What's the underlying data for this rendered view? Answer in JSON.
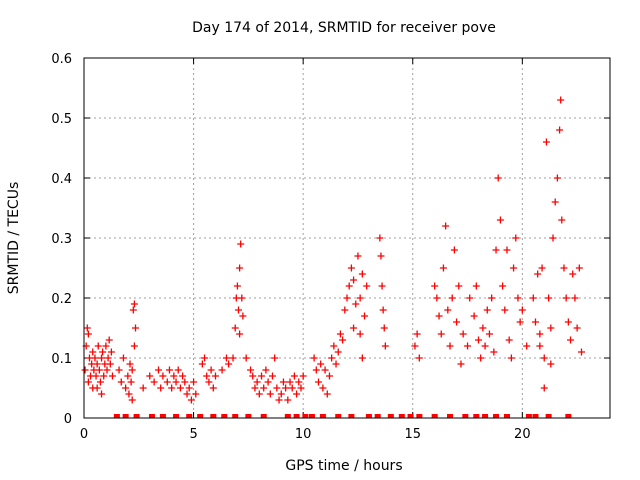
{
  "chart_data": {
    "type": "scatter",
    "title": "Day 174 of 2014, SRMTID for receiver pove",
    "xlabel": "GPS time / hours",
    "ylabel": "SRMTID / TECUs",
    "xlim": [
      0,
      24
    ],
    "ylim": [
      0,
      0.6
    ],
    "xticks": [
      0,
      5,
      10,
      15,
      20
    ],
    "xtick_labels": [
      "0",
      "5",
      "10",
      "15",
      "20"
    ],
    "yticks": [
      0,
      0.1,
      0.2,
      0.3,
      0.4,
      0.5,
      0.6
    ],
    "ytick_labels": [
      "0",
      "0.1",
      "0.2",
      "0.3",
      "0.4",
      "0.5",
      "0.6"
    ],
    "grid": true,
    "marker": "plus",
    "series": [
      {
        "name": "SRMTID",
        "color": "#ff0000",
        "points": [
          [
            0.05,
            0.08
          ],
          [
            0.1,
            0.12
          ],
          [
            0.15,
            0.15
          ],
          [
            0.2,
            0.06
          ],
          [
            0.25,
            0.1
          ],
          [
            0.3,
            0.07
          ],
          [
            0.35,
            0.09
          ],
          [
            0.4,
            0.05
          ],
          [
            0.45,
            0.08
          ],
          [
            0.5,
            0.1
          ],
          [
            0.55,
            0.07
          ],
          [
            0.6,
            0.09
          ],
          [
            0.65,
            0.12
          ],
          [
            0.7,
            0.08
          ],
          [
            0.75,
            0.06
          ],
          [
            0.8,
            0.1
          ],
          [
            0.85,
            0.11
          ],
          [
            0.9,
            0.07
          ],
          [
            0.95,
            0.09
          ],
          [
            1.0,
            0.12
          ],
          [
            1.05,
            0.08
          ],
          [
            1.1,
            0.1
          ],
          [
            1.15,
            0.13
          ],
          [
            1.2,
            0.09
          ],
          [
            1.25,
            0.11
          ],
          [
            1.3,
            0.07
          ],
          [
            0.2,
            0.14
          ],
          [
            0.4,
            0.11
          ],
          [
            0.6,
            0.05
          ],
          [
            0.8,
            0.04
          ],
          [
            1.6,
            0.08
          ],
          [
            1.7,
            0.06
          ],
          [
            1.8,
            0.1
          ],
          [
            1.9,
            0.05
          ],
          [
            2.0,
            0.07
          ],
          [
            2.05,
            0.04
          ],
          [
            2.1,
            0.09
          ],
          [
            2.15,
            0.06
          ],
          [
            2.2,
            0.03
          ],
          [
            2.25,
            0.18
          ],
          [
            2.3,
            0.19
          ],
          [
            2.35,
            0.15
          ],
          [
            2.3,
            0.12
          ],
          [
            2.2,
            0.08
          ],
          [
            2.7,
            0.05
          ],
          [
            3.0,
            0.07
          ],
          [
            3.2,
            0.06
          ],
          [
            3.4,
            0.08
          ],
          [
            3.5,
            0.05
          ],
          [
            3.6,
            0.07
          ],
          [
            3.8,
            0.06
          ],
          [
            3.9,
            0.08
          ],
          [
            4.0,
            0.05
          ],
          [
            4.1,
            0.07
          ],
          [
            4.2,
            0.06
          ],
          [
            4.3,
            0.08
          ],
          [
            4.4,
            0.05
          ],
          [
            4.5,
            0.07
          ],
          [
            4.6,
            0.06
          ],
          [
            4.7,
            0.04
          ],
          [
            4.8,
            0.05
          ],
          [
            4.9,
            0.03
          ],
          [
            5.0,
            0.06
          ],
          [
            5.1,
            0.04
          ],
          [
            5.4,
            0.09
          ],
          [
            5.5,
            0.1
          ],
          [
            5.6,
            0.07
          ],
          [
            5.7,
            0.06
          ],
          [
            5.8,
            0.08
          ],
          [
            5.9,
            0.05
          ],
          [
            6.0,
            0.07
          ],
          [
            6.3,
            0.08
          ],
          [
            6.5,
            0.1
          ],
          [
            6.6,
            0.09
          ],
          [
            6.8,
            0.1
          ],
          [
            6.9,
            0.15
          ],
          [
            6.95,
            0.2
          ],
          [
            7.0,
            0.22
          ],
          [
            7.05,
            0.18
          ],
          [
            7.1,
            0.25
          ],
          [
            7.15,
            0.29
          ],
          [
            7.2,
            0.2
          ],
          [
            7.1,
            0.14
          ],
          [
            7.25,
            0.17
          ],
          [
            7.4,
            0.1
          ],
          [
            7.6,
            0.08
          ],
          [
            7.7,
            0.07
          ],
          [
            7.8,
            0.05
          ],
          [
            7.9,
            0.06
          ],
          [
            8.0,
            0.04
          ],
          [
            8.1,
            0.07
          ],
          [
            8.2,
            0.05
          ],
          [
            8.3,
            0.08
          ],
          [
            8.4,
            0.06
          ],
          [
            8.5,
            0.04
          ],
          [
            8.6,
            0.07
          ],
          [
            8.7,
            0.1
          ],
          [
            8.8,
            0.05
          ],
          [
            8.9,
            0.03
          ],
          [
            9.0,
            0.04
          ],
          [
            9.1,
            0.06
          ],
          [
            9.2,
            0.05
          ],
          [
            9.3,
            0.03
          ],
          [
            9.4,
            0.06
          ],
          [
            9.5,
            0.05
          ],
          [
            9.6,
            0.07
          ],
          [
            9.7,
            0.04
          ],
          [
            9.8,
            0.06
          ],
          [
            9.9,
            0.05
          ],
          [
            10.0,
            0.07
          ],
          [
            10.5,
            0.1
          ],
          [
            10.6,
            0.08
          ],
          [
            10.7,
            0.06
          ],
          [
            10.8,
            0.09
          ],
          [
            10.9,
            0.05
          ],
          [
            11.0,
            0.08
          ],
          [
            11.1,
            0.04
          ],
          [
            11.2,
            0.07
          ],
          [
            11.3,
            0.1
          ],
          [
            11.4,
            0.12
          ],
          [
            11.5,
            0.09
          ],
          [
            11.6,
            0.11
          ],
          [
            11.7,
            0.14
          ],
          [
            11.8,
            0.13
          ],
          [
            11.9,
            0.18
          ],
          [
            12.0,
            0.2
          ],
          [
            12.1,
            0.22
          ],
          [
            12.2,
            0.25
          ],
          [
            12.3,
            0.23
          ],
          [
            12.4,
            0.19
          ],
          [
            12.5,
            0.27
          ],
          [
            12.6,
            0.2
          ],
          [
            12.7,
            0.24
          ],
          [
            12.8,
            0.17
          ],
          [
            12.9,
            0.22
          ],
          [
            12.6,
            0.14
          ],
          [
            12.7,
            0.1
          ],
          [
            12.3,
            0.15
          ],
          [
            13.5,
            0.3
          ],
          [
            13.55,
            0.27
          ],
          [
            13.6,
            0.22
          ],
          [
            13.65,
            0.18
          ],
          [
            13.7,
            0.15
          ],
          [
            13.75,
            0.12
          ],
          [
            15.1,
            0.12
          ],
          [
            15.2,
            0.14
          ],
          [
            15.3,
            0.1
          ],
          [
            16.0,
            0.22
          ],
          [
            16.1,
            0.2
          ],
          [
            16.2,
            0.17
          ],
          [
            16.3,
            0.14
          ],
          [
            16.4,
            0.25
          ],
          [
            16.5,
            0.32
          ],
          [
            16.6,
            0.18
          ],
          [
            16.7,
            0.12
          ],
          [
            16.8,
            0.2
          ],
          [
            16.9,
            0.28
          ],
          [
            17.0,
            0.16
          ],
          [
            17.1,
            0.22
          ],
          [
            17.2,
            0.09
          ],
          [
            17.3,
            0.14
          ],
          [
            17.5,
            0.12
          ],
          [
            17.6,
            0.2
          ],
          [
            17.8,
            0.17
          ],
          [
            17.9,
            0.22
          ],
          [
            18.0,
            0.13
          ],
          [
            18.1,
            0.1
          ],
          [
            18.2,
            0.15
          ],
          [
            18.3,
            0.12
          ],
          [
            18.4,
            0.18
          ],
          [
            18.5,
            0.14
          ],
          [
            18.6,
            0.2
          ],
          [
            18.7,
            0.11
          ],
          [
            18.8,
            0.28
          ],
          [
            18.9,
            0.4
          ],
          [
            19.0,
            0.33
          ],
          [
            19.1,
            0.22
          ],
          [
            19.2,
            0.18
          ],
          [
            19.3,
            0.28
          ],
          [
            19.4,
            0.13
          ],
          [
            19.5,
            0.1
          ],
          [
            19.6,
            0.25
          ],
          [
            19.7,
            0.3
          ],
          [
            19.8,
            0.2
          ],
          [
            19.9,
            0.16
          ],
          [
            20.0,
            0.18
          ],
          [
            20.2,
            0.12
          ],
          [
            20.5,
            0.2
          ],
          [
            20.6,
            0.16
          ],
          [
            20.7,
            0.24
          ],
          [
            20.8,
            0.14
          ],
          [
            20.9,
            0.25
          ],
          [
            21.0,
            0.05
          ],
          [
            21.1,
            0.46
          ],
          [
            21.2,
            0.2
          ],
          [
            21.3,
            0.15
          ],
          [
            21.4,
            0.3
          ],
          [
            21.5,
            0.36
          ],
          [
            21.6,
            0.4
          ],
          [
            21.7,
            0.48
          ],
          [
            21.75,
            0.53
          ],
          [
            21.8,
            0.33
          ],
          [
            21.9,
            0.25
          ],
          [
            22.0,
            0.2
          ],
          [
            22.1,
            0.16
          ],
          [
            22.2,
            0.13
          ],
          [
            22.3,
            0.24
          ],
          [
            22.4,
            0.2
          ],
          [
            22.5,
            0.15
          ],
          [
            22.6,
            0.25
          ],
          [
            22.7,
            0.11
          ],
          [
            21.3,
            0.09
          ],
          [
            21.0,
            0.1
          ],
          [
            20.8,
            0.12
          ]
        ],
        "zero_points": [
          1.5,
          1.9,
          2.4,
          3.1,
          3.6,
          4.2,
          4.8,
          5.3,
          5.9,
          6.4,
          6.9,
          7.5,
          8.2,
          9.3,
          9.7,
          10.1,
          10.4,
          10.9,
          11.6,
          12.2,
          13.0,
          13.4,
          14.0,
          14.5,
          14.9,
          15.3,
          16.0,
          16.7,
          17.4,
          17.9,
          18.3,
          18.8,
          19.3,
          20.3,
          20.6,
          21.2,
          22.1
        ]
      }
    ]
  }
}
